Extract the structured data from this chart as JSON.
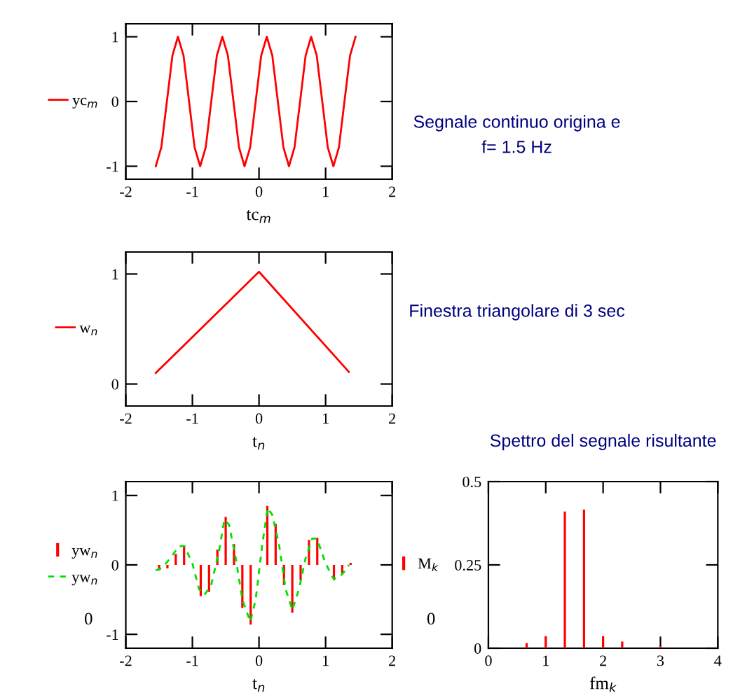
{
  "chart_data": [
    {
      "type": "line",
      "xlabel": "tc$_{m}$",
      "xlim": [
        -2,
        2
      ],
      "xticks": [
        -2,
        -1,
        0,
        1,
        2
      ],
      "ylim": [
        -1.2,
        1.2
      ],
      "yticks": [
        -1,
        0,
        1
      ],
      "legend": "left",
      "grid": false,
      "series": [
        {
          "name": "yc$_{m}$",
          "color": "#ff0000",
          "x": [
            -1.55,
            -1.467,
            -1.383,
            -1.3,
            -1.217,
            -1.133,
            -1.05,
            -0.967,
            -0.883,
            -0.8,
            -0.717,
            -0.633,
            -0.55,
            -0.467,
            -0.383,
            -0.3,
            -0.217,
            -0.133,
            -0.05,
            0.033,
            0.117,
            0.2,
            0.283,
            0.367,
            0.45,
            0.533,
            0.617,
            0.7,
            0.783,
            0.867,
            0.95,
            1.033,
            1.117,
            1.2,
            1.283,
            1.367,
            1.45
          ],
          "values": [
            -1,
            -0.71,
            0,
            0.71,
            1,
            0.71,
            0,
            -0.71,
            -1,
            -0.71,
            0,
            0.71,
            1,
            0.71,
            0,
            -0.71,
            -1,
            -0.71,
            0,
            0.71,
            1,
            0.71,
            0,
            -0.71,
            -1,
            -0.71,
            0,
            0.71,
            1,
            0.71,
            0,
            -0.71,
            -1,
            -0.71,
            0,
            0.71,
            1
          ]
        }
      ]
    },
    {
      "type": "other",
      "annotations": [
        "Segnale continuo origina e",
        "f= 1.5 Hz"
      ]
    },
    {
      "type": "line",
      "xlabel": "t$_{n}$",
      "xlim": [
        -2,
        2
      ],
      "xticks": [
        -2,
        -1,
        0,
        1,
        2
      ],
      "ylim": [
        -0.2,
        1.2
      ],
      "yticks": [
        0,
        1
      ],
      "legend": "left",
      "grid": false,
      "series": [
        {
          "name": "w$_{n}$",
          "color": "#ff0000",
          "x": [
            -1.55,
            0,
            1.35
          ],
          "values": [
            0.1,
            1.02,
            0.11
          ]
        }
      ]
    },
    {
      "type": "other",
      "annotations": [
        "Finestra triangolare di 3 sec"
      ]
    },
    {
      "type": "bar",
      "xlabel": "t$_{n}$",
      "ylabel": "0",
      "xlim": [
        -2,
        2
      ],
      "xticks": [
        -2,
        -1,
        0,
        1,
        2
      ],
      "ylim": [
        -1.2,
        1.2
      ],
      "yticks": [
        -1,
        0,
        1
      ],
      "legend": "left",
      "grid": false,
      "series": [
        {
          "name": "yw$_{n}$",
          "color": "#ff0000",
          "x": [
            -1.5,
            -1.375,
            -1.25,
            -1.125,
            -1.0,
            -0.875,
            -0.75,
            -0.625,
            -0.5,
            -0.375,
            -0.25,
            -0.125,
            0,
            0.125,
            0.25,
            0.375,
            0.5,
            0.625,
            0.75,
            0.875,
            1.0,
            1.125,
            1.25,
            1.375
          ],
          "values": [
            -0.08,
            -0.05,
            0.16,
            0.28,
            0,
            -0.45,
            -0.39,
            0.22,
            0.69,
            0.3,
            -0.62,
            -0.86,
            0,
            0.85,
            0.59,
            -0.29,
            -0.69,
            -0.22,
            0.36,
            0.39,
            0,
            -0.22,
            -0.12,
            0.03
          ]
        },
        {
          "name": "yw$_{n}$",
          "type": "line",
          "line_style": "dashed",
          "color": "#00e000",
          "x": [
            -1.55,
            -1.45,
            -1.33,
            -1.2,
            -1.12,
            -1.0,
            -0.9,
            -0.82,
            -0.72,
            -0.6,
            -0.52,
            -0.45,
            -0.35,
            -0.25,
            -0.13,
            -0.05,
            0.05,
            0.13,
            0.2,
            0.3,
            0.4,
            0.5,
            0.6,
            0.7,
            0.8,
            0.87,
            1.0,
            1.12,
            1.2,
            1.3,
            1.35
          ],
          "values": [
            -0.08,
            -0.04,
            0.1,
            0.27,
            0.27,
            0.02,
            -0.35,
            -0.43,
            -0.3,
            0.2,
            0.65,
            0.58,
            0.1,
            -0.5,
            -0.82,
            -0.5,
            0.3,
            0.82,
            0.72,
            0.3,
            -0.35,
            -0.65,
            -0.35,
            0.1,
            0.38,
            0.38,
            0.02,
            -0.2,
            -0.18,
            -0.08,
            0.0
          ]
        }
      ]
    },
    {
      "type": "bar",
      "title": "Spettro del segnale risultante",
      "xlabel": "fm$_{k}$",
      "ylabel": "0",
      "xlim": [
        0,
        4
      ],
      "xticks": [
        0,
        1,
        2,
        3,
        4
      ],
      "ylim": [
        0,
        0.5
      ],
      "yticks": [
        0,
        0.25,
        0.5
      ],
      "legend": "left",
      "grid": false,
      "series": [
        {
          "name": "M$_{k}$",
          "color": "#ff0000",
          "x": [
            0,
            0.333,
            0.667,
            1.0,
            1.333,
            1.667,
            2.0,
            2.333,
            2.667,
            3.0,
            3.333,
            3.667,
            4.0
          ],
          "values": [
            0,
            0,
            0.015,
            0.036,
            0.41,
            0.416,
            0.036,
            0.02,
            0,
            0.006,
            0,
            0,
            0
          ]
        }
      ]
    }
  ]
}
